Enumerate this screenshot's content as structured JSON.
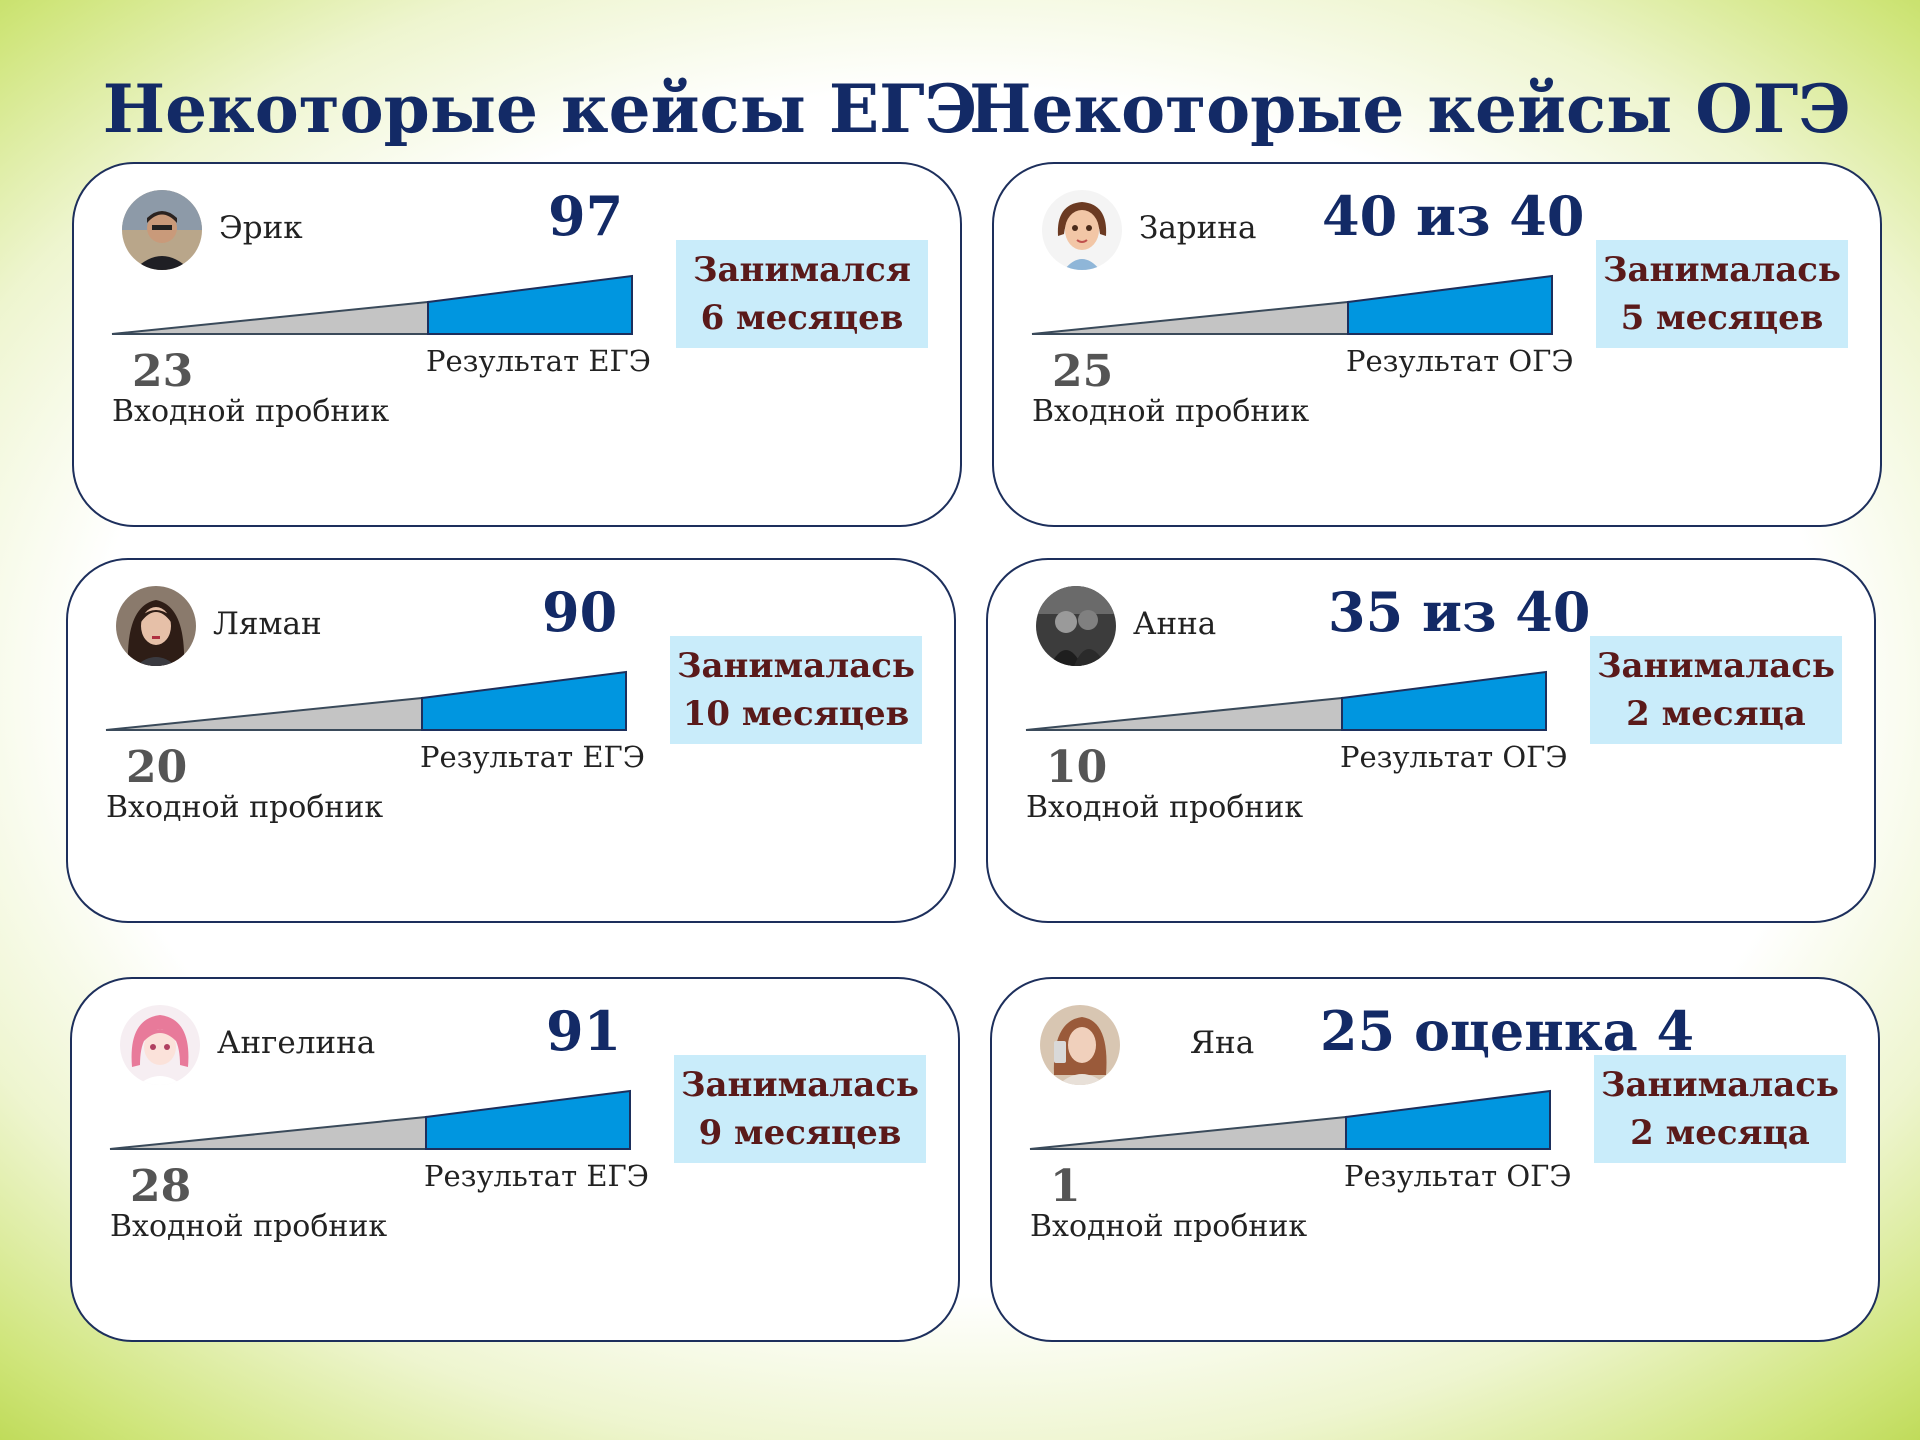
{
  "headings": {
    "ege": "Некоторые кейсы ЕГЭ",
    "oge": "Некоторые кейсы ОГЭ"
  },
  "labels": {
    "start": "Входной пробник"
  },
  "colors": {
    "title": "#132a66",
    "wedge_start": "#c4c4c4",
    "wedge_result": "#0096e0",
    "duration_bg": "#c9ecfa",
    "duration_text": "#5a1a1a"
  },
  "cases": [
    {
      "name": "Эрик",
      "result": "97",
      "start": "23",
      "result_label": "Результат ЕГЭ",
      "duration_line1": "Занимался",
      "duration_line2": "6 месяцев",
      "avatar": "photo-avatar-man"
    },
    {
      "name": "Зарина",
      "result": "40 из 40",
      "start": "25",
      "result_label": "Результат ОГЭ",
      "duration_line1": "Занималась",
      "duration_line2": "5 месяцев",
      "avatar": "cartoon-girl-avatar"
    },
    {
      "name": "Ляман",
      "result": "90",
      "start": "20",
      "result_label": "Результат ЕГЭ",
      "duration_line1": "Занималась",
      "duration_line2": "10 месяцев",
      "avatar": "photo-avatar-girl"
    },
    {
      "name": "Анна",
      "result": "35 из 40",
      "start": "10",
      "result_label": "Результат ОГЭ",
      "duration_line1": "Занималась",
      "duration_line2": "2 месяца",
      "avatar": "photo-avatar-bw"
    },
    {
      "name": "Ангелина",
      "result": "91",
      "start": "28",
      "result_label": "Результат ЕГЭ",
      "duration_line1": "Занималась",
      "duration_line2": "9 месяцев",
      "avatar": "anime-girl-avatar"
    },
    {
      "name": "Яна",
      "result": "25 оценка 4",
      "start": "1",
      "result_label": "Результат ОГЭ",
      "duration_line1": "Занималась",
      "duration_line2": "2 месяца",
      "avatar": "photo-avatar-girl-2"
    }
  ]
}
